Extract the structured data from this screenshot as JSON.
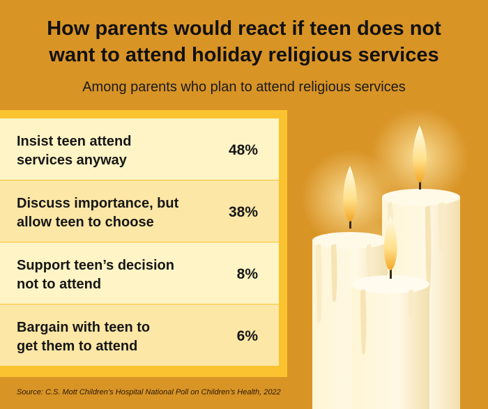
{
  "title": "How parents would react if teen does not\nwant to attend holiday religious services",
  "subtitle": "Among parents who plan to attend religious services",
  "chart_data": {
    "type": "table",
    "rows": [
      {
        "label": "Insist teen attend\nservices anyway",
        "value": 48,
        "display": "48%"
      },
      {
        "label": "Discuss importance, but\nallow teen to choose",
        "value": 38,
        "display": "38%"
      },
      {
        "label": "Support teen’s decision\nnot to attend",
        "value": 8,
        "display": "8%"
      },
      {
        "label": "Bargain with teen to\nget them to attend",
        "value": 6,
        "display": "6%"
      }
    ]
  },
  "source": "Source: C.S. Mott Children’s Hospital National Poll on Children’s Health, 2022",
  "colors": {
    "background": "#D99426",
    "panel_border": "#FBC32F",
    "row_light": "#FEF4C5",
    "row_dark": "#FDE7A6"
  }
}
